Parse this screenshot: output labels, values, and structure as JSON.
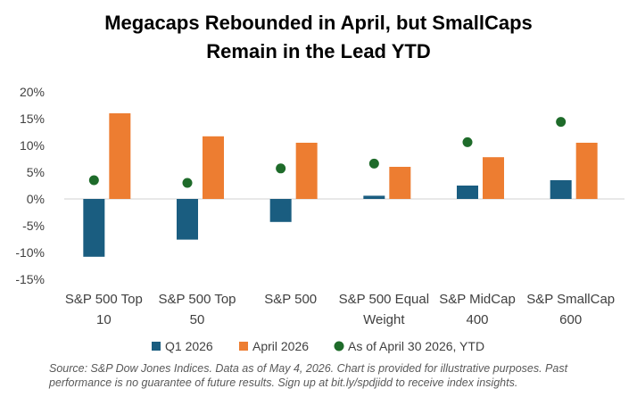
{
  "chart_data": {
    "type": "bar",
    "title_lines": [
      "Megacaps Rebounded in April, but SmallCaps",
      "Remain in the Lead YTD"
    ],
    "categories": [
      [
        "S&P 500 Top",
        "10"
      ],
      [
        "S&P 500 Top",
        "50"
      ],
      [
        "S&P 500"
      ],
      [
        "S&P 500 Equal",
        "Weight"
      ],
      [
        "S&P MidCap",
        "400"
      ],
      [
        "S&P SmallCap",
        "600"
      ]
    ],
    "series": [
      {
        "name": "Q1 2026",
        "kind": "bar",
        "color": "#1a5d80",
        "values": [
          -10.8,
          -7.6,
          -4.3,
          0.6,
          2.5,
          3.5
        ]
      },
      {
        "name": "April 2026",
        "kind": "bar",
        "color": "#ed7d31",
        "values": [
          16.0,
          11.7,
          10.5,
          6.0,
          7.8,
          10.5
        ]
      },
      {
        "name": "As of April 30 2026, YTD",
        "kind": "marker",
        "color": "#1e6b2a",
        "values": [
          3.5,
          3.0,
          5.7,
          6.6,
          10.6,
          14.4
        ]
      }
    ],
    "yticks": [
      "20%",
      "15%",
      "10%",
      "5%",
      "0%",
      "-5%",
      "-10%",
      "-15%"
    ],
    "ytick_values": [
      20,
      15,
      10,
      5,
      0,
      -5,
      -10,
      -15
    ],
    "ylim": [
      -15,
      20
    ],
    "xlabel": "",
    "ylabel": "",
    "grid": false,
    "legend_position": "bottom"
  },
  "source_note": "Source: S&P Dow Jones Indices. Data as of May 4, 2026. Chart is provided for illustrative purposes. Past performance is no guarantee of future results. Sign up at bit.ly/spdjidd to receive index insights."
}
